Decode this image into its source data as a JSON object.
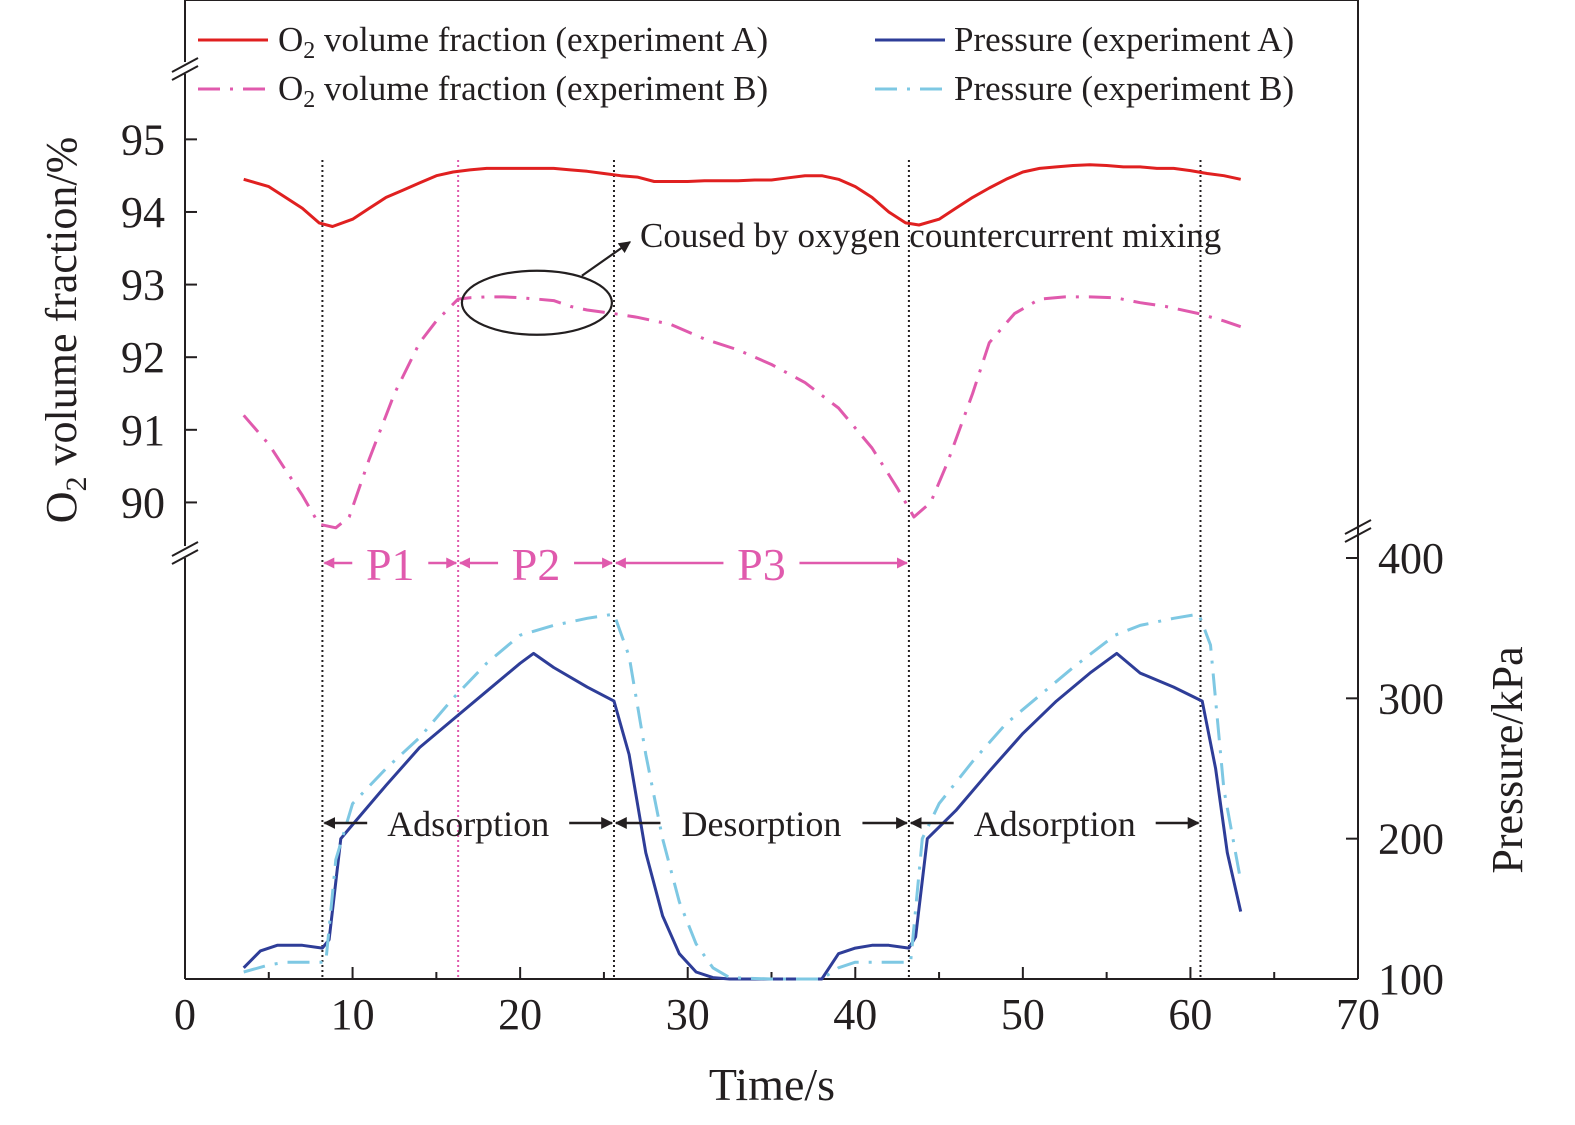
{
  "chart_data": {
    "type": "line",
    "title": "",
    "xlabel": "Time/s",
    "ylabel_left": "O2 volume fraction/%",
    "ylabel_right": "Pressure/kPa",
    "xlim": [
      0,
      70
    ],
    "xticks": [
      "0",
      "10",
      "20",
      "30",
      "40",
      "50",
      "60",
      "70"
    ],
    "ylim_left": [
      89.4,
      95.9
    ],
    "yticks_left": [
      "90",
      "91",
      "92",
      "93",
      "94",
      "95"
    ],
    "ylim_right": [
      100,
      400
    ],
    "yticks_right": [
      "100",
      "200",
      "300",
      "400"
    ],
    "axis_break": "left axis broken between O2 panel and pressure panel",
    "grid": false,
    "legend_position": "top",
    "series": [
      {
        "name": "O2 volume fraction (experiment A)",
        "axis": "left",
        "color": "#e02020",
        "style": "solid",
        "x": [
          3.5,
          5,
          6,
          7,
          8,
          8.8,
          10,
          11,
          12,
          13,
          14,
          15,
          16,
          17,
          18,
          19,
          20,
          21,
          22,
          23,
          24,
          25,
          26,
          27,
          28,
          29,
          30,
          31,
          32,
          33,
          34,
          35,
          36,
          37,
          38,
          39,
          40,
          41,
          42,
          43,
          43.8,
          45,
          46,
          47,
          48,
          49,
          50,
          51,
          52,
          53,
          54,
          55,
          56,
          57,
          58,
          59,
          60,
          61,
          62,
          63
        ],
        "y": [
          94.45,
          94.35,
          94.2,
          94.05,
          93.85,
          93.8,
          93.9,
          94.05,
          94.2,
          94.3,
          94.4,
          94.5,
          94.55,
          94.58,
          94.6,
          94.6,
          94.6,
          94.6,
          94.6,
          94.58,
          94.56,
          94.53,
          94.5,
          94.48,
          94.42,
          94.42,
          94.42,
          94.43,
          94.43,
          94.43,
          94.44,
          94.44,
          94.47,
          94.5,
          94.5,
          94.45,
          94.35,
          94.2,
          94.0,
          93.85,
          93.82,
          93.9,
          94.05,
          94.2,
          94.33,
          94.45,
          94.55,
          94.6,
          94.62,
          94.64,
          94.65,
          94.64,
          94.62,
          94.62,
          94.6,
          94.6,
          94.57,
          94.53,
          94.5,
          94.45
        ]
      },
      {
        "name": "Pressure (experiment A)",
        "axis": "right",
        "color": "#2e3d98",
        "style": "solid",
        "x": [
          3.5,
          4.5,
          5.5,
          7,
          8.2,
          8.6,
          9.3,
          10,
          12,
          14,
          16,
          18,
          20,
          20.8,
          22,
          24,
          25.6,
          26.5,
          27.5,
          28.5,
          29.5,
          30.5,
          31.5,
          32.5,
          35,
          37,
          38,
          39,
          40,
          41,
          42,
          43.2,
          43.6,
          44.3,
          46,
          48,
          50,
          52,
          54,
          55.6,
          57,
          59,
          60.7,
          61.5,
          62.2,
          63
        ],
        "y": [
          108,
          120,
          124,
          124,
          122,
          128,
          200,
          210,
          238,
          265,
          285,
          305,
          325,
          332,
          322,
          308,
          298,
          260,
          190,
          145,
          118,
          105,
          101,
          100,
          100,
          100,
          100,
          118,
          122,
          124,
          124,
          122,
          130,
          200,
          220,
          248,
          275,
          298,
          318,
          332,
          318,
          308,
          298,
          250,
          190,
          148
        ]
      },
      {
        "name": "O2 volume fraction (experiment B)",
        "axis": "left",
        "color": "#e05aad",
        "style": "dashdot",
        "x": [
          3.5,
          5,
          6,
          7,
          8,
          9,
          9.8,
          11,
          12.5,
          14,
          15,
          16.3,
          17,
          18,
          19,
          20,
          21,
          22,
          23,
          24,
          25.6,
          27,
          29,
          31,
          33,
          35,
          37,
          39,
          41,
          42.5,
          43.5,
          44.5,
          45.5,
          47,
          48,
          49.5,
          51,
          52.5,
          54,
          55.5,
          57,
          58.5,
          60.5,
          62,
          63
        ],
        "y": [
          91.2,
          90.8,
          90.45,
          90.1,
          89.7,
          89.65,
          89.8,
          90.6,
          91.5,
          92.2,
          92.5,
          92.8,
          92.82,
          92.83,
          92.83,
          92.82,
          92.8,
          92.78,
          92.7,
          92.65,
          92.6,
          92.55,
          92.45,
          92.25,
          92.1,
          91.9,
          91.65,
          91.3,
          90.75,
          90.2,
          89.8,
          90.0,
          90.55,
          91.5,
          92.2,
          92.6,
          92.8,
          92.83,
          92.83,
          92.82,
          92.75,
          92.7,
          92.6,
          92.5,
          92.42
        ]
      },
      {
        "name": "Pressure (experiment B)",
        "axis": "right",
        "color": "#7ec8e3",
        "style": "dashdot",
        "x": [
          3.5,
          5,
          6,
          7,
          8.4,
          9,
          10,
          12,
          14,
          16,
          18,
          20,
          22,
          24,
          25.6,
          26.5,
          27.5,
          28.5,
          29.5,
          30.5,
          31.5,
          32.5,
          35,
          37.5,
          38,
          39,
          40,
          41,
          42,
          43.3,
          44,
          45,
          47,
          49,
          51,
          53,
          55.5,
          57,
          59,
          60.5,
          61.2,
          62,
          63
        ],
        "y": [
          105,
          110,
          112,
          112,
          112,
          185,
          225,
          250,
          272,
          300,
          325,
          345,
          352,
          357,
          360,
          330,
          260,
          200,
          155,
          125,
          108,
          101,
          100,
          100,
          100,
          108,
          112,
          112,
          112,
          112,
          200,
          225,
          255,
          282,
          302,
          322,
          345,
          352,
          357,
          360,
          338,
          235,
          170
        ]
      }
    ],
    "vlines": [
      {
        "x": 8.2,
        "color": "#231f20"
      },
      {
        "x": 16.3,
        "color": "#e05aad"
      },
      {
        "x": 25.6,
        "color": "#231f20"
      },
      {
        "x": 43.2,
        "color": "#231f20"
      },
      {
        "x": 60.6,
        "color": "#231f20"
      }
    ],
    "phase_arrows": [
      {
        "label": "P1",
        "x1": 8.2,
        "x2": 16.3,
        "color": "#e05aad"
      },
      {
        "label": "P2",
        "x1": 16.3,
        "x2": 25.6,
        "color": "#e05aad"
      },
      {
        "label": "P3",
        "x1": 25.6,
        "x2": 43.2,
        "color": "#e05aad"
      }
    ],
    "stage_arrows": [
      {
        "label": "Adsorption",
        "x1": 8.2,
        "x2": 25.6
      },
      {
        "label": "Desorption",
        "x1": 25.6,
        "x2": 43.2
      },
      {
        "label": "Adsorption",
        "x1": 43.2,
        "x2": 60.6
      }
    ],
    "annotation": {
      "text": "Coused by oxygen countercurrent mixing",
      "center_x": 21,
      "center_y": 92.75
    }
  }
}
